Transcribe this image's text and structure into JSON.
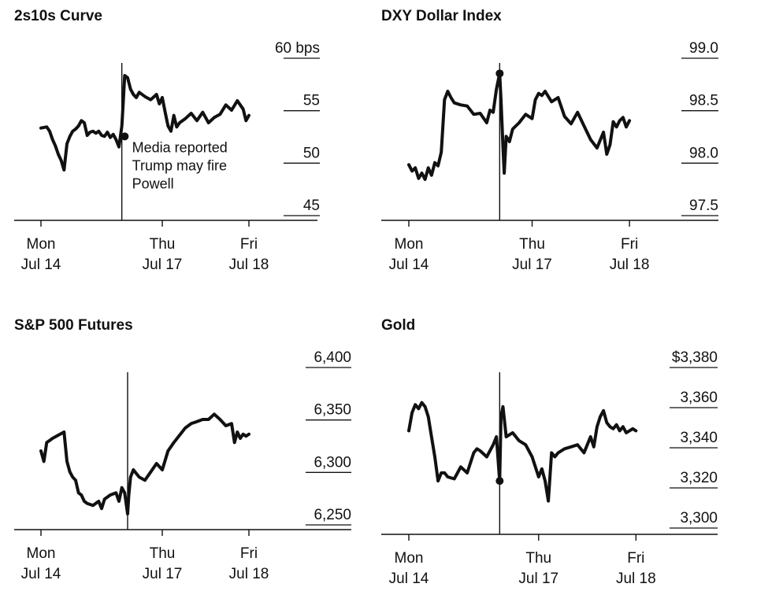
{
  "chart_data": [
    {
      "type": "line",
      "title": "2s10s Curve",
      "unit_label": "bps",
      "ylim": [
        45,
        60
      ],
      "y_ticks": [
        {
          "value": 60,
          "label": "60 bps"
        },
        {
          "value": 55,
          "label": "55"
        },
        {
          "value": 50,
          "label": "50"
        },
        {
          "value": 45,
          "label": "45"
        }
      ],
      "xlim": [
        0,
        4.2
      ],
      "x_ticks": [
        {
          "x": 0,
          "line1": "Mon",
          "line2": "Jul 14"
        },
        {
          "x": 2.1,
          "line1": "Thu",
          "line2": "Jul 17"
        },
        {
          "x": 3.6,
          "line1": "Fri",
          "line2": "Jul 18"
        }
      ],
      "event_x": 1.4,
      "event_marker": {
        "x": 1.45,
        "y": 51.5
      },
      "annotation": [
        "Media reported",
        "Trump may fire",
        "Powell"
      ],
      "series": [
        {
          "name": "2s10s",
          "x": [
            0,
            0.1,
            0.15,
            0.2,
            0.25,
            0.3,
            0.35,
            0.4,
            0.45,
            0.5,
            0.55,
            0.6,
            0.65,
            0.7,
            0.75,
            0.8,
            0.85,
            0.9,
            0.95,
            1.0,
            1.05,
            1.1,
            1.15,
            1.2,
            1.25,
            1.3,
            1.35,
            1.4,
            1.42,
            1.45,
            1.5,
            1.55,
            1.6,
            1.65,
            1.7,
            1.8,
            1.9,
            2.0,
            2.05,
            2.1,
            2.15,
            2.2,
            2.25,
            2.3,
            2.35,
            2.4,
            2.5,
            2.6,
            2.7,
            2.8,
            2.9,
            3.0,
            3.1,
            3.2,
            3.3,
            3.4,
            3.5,
            3.55,
            3.6
          ],
          "y": [
            52.3,
            52.4,
            52.0,
            51.2,
            50.6,
            49.8,
            49.2,
            48.3,
            50.8,
            51.5,
            52.0,
            52.2,
            52.5,
            53.0,
            52.8,
            51.6,
            51.9,
            52.0,
            51.8,
            52.0,
            51.6,
            51.5,
            51.9,
            51.4,
            51.7,
            51.2,
            50.5,
            52.5,
            54.3,
            57.3,
            57.1,
            56.0,
            55.5,
            55.2,
            55.7,
            55.3,
            55.0,
            55.5,
            54.6,
            55.2,
            53.8,
            52.5,
            52.0,
            53.5,
            52.4,
            52.8,
            53.2,
            53.7,
            53.0,
            53.8,
            52.8,
            53.3,
            53.6,
            54.5,
            54.0,
            54.9,
            54.1,
            53.0,
            53.5
          ]
        }
      ]
    },
    {
      "type": "line",
      "title": "DXY Dollar Index",
      "ylim": [
        97.5,
        99.0
      ],
      "y_ticks": [
        {
          "value": 99.0,
          "label": "99.0"
        },
        {
          "value": 98.5,
          "label": "98.5"
        },
        {
          "value": 98.0,
          "label": "98.0"
        },
        {
          "value": 97.5,
          "label": "97.5"
        }
      ],
      "xlim": [
        0,
        4.2
      ],
      "x_ticks": [
        {
          "x": 0,
          "line1": "Mon",
          "line2": "Jul 14"
        },
        {
          "x": 1.9,
          "line1": "Thu",
          "line2": "Jul 17"
        },
        {
          "x": 3.4,
          "line1": "Fri",
          "line2": "Jul 18"
        }
      ],
      "event_x": 1.4,
      "event_marker": {
        "x": 1.4,
        "y": 98.75
      },
      "series": [
        {
          "name": "DXY",
          "x": [
            0,
            0.05,
            0.1,
            0.15,
            0.2,
            0.25,
            0.3,
            0.35,
            0.4,
            0.45,
            0.5,
            0.55,
            0.6,
            0.65,
            0.7,
            0.8,
            0.9,
            1.0,
            1.1,
            1.2,
            1.25,
            1.3,
            1.35,
            1.4,
            1.42,
            1.45,
            1.47,
            1.5,
            1.55,
            1.6,
            1.7,
            1.8,
            1.9,
            1.95,
            2.0,
            2.05,
            2.1,
            2.2,
            2.3,
            2.4,
            2.5,
            2.6,
            2.7,
            2.8,
            2.9,
            3.0,
            3.05,
            3.1,
            3.15,
            3.2,
            3.25,
            3.3,
            3.35,
            3.4
          ],
          "y": [
            97.88,
            97.82,
            97.85,
            97.75,
            97.8,
            97.74,
            97.85,
            97.78,
            97.9,
            97.87,
            98.0,
            98.5,
            98.58,
            98.52,
            98.47,
            98.45,
            98.44,
            98.36,
            98.37,
            98.28,
            98.4,
            98.38,
            98.6,
            98.75,
            98.5,
            98.05,
            97.8,
            98.15,
            98.1,
            98.22,
            98.28,
            98.36,
            98.32,
            98.5,
            98.56,
            98.54,
            98.58,
            98.48,
            98.52,
            98.34,
            98.27,
            98.38,
            98.25,
            98.12,
            98.04,
            98.19,
            97.98,
            98.07,
            98.29,
            98.24,
            98.3,
            98.33,
            98.24,
            98.3
          ]
        }
      ]
    },
    {
      "type": "line",
      "title": "S&P 500 Futures",
      "ylim": [
        6250,
        6400
      ],
      "y_ticks": [
        {
          "value": 6400,
          "label": "6,400"
        },
        {
          "value": 6350,
          "label": "6,350"
        },
        {
          "value": 6300,
          "label": "6,300"
        },
        {
          "value": 6250,
          "label": "6,250"
        }
      ],
      "xlim": [
        0,
        4.2
      ],
      "x_ticks": [
        {
          "x": 0,
          "line1": "Mon",
          "line2": "Jul 14"
        },
        {
          "x": 2.1,
          "line1": "Thu",
          "line2": "Jul 17"
        },
        {
          "x": 3.6,
          "line1": "Fri",
          "line2": "Jul 18"
        }
      ],
      "event_x": 1.5,
      "series": [
        {
          "name": "S&P 500 Futures",
          "x": [
            0,
            0.05,
            0.1,
            0.15,
            0.2,
            0.3,
            0.4,
            0.45,
            0.5,
            0.55,
            0.6,
            0.65,
            0.7,
            0.75,
            0.8,
            0.9,
            1.0,
            1.05,
            1.1,
            1.2,
            1.3,
            1.35,
            1.4,
            1.45,
            1.5,
            1.52,
            1.55,
            1.6,
            1.7,
            1.8,
            1.9,
            2.0,
            2.1,
            2.2,
            2.3,
            2.4,
            2.5,
            2.6,
            2.7,
            2.8,
            2.9,
            3.0,
            3.1,
            3.2,
            3.3,
            3.35,
            3.4,
            3.45,
            3.5,
            3.55,
            3.6
          ],
          "y": [
            6310,
            6300,
            6318,
            6320,
            6322,
            6325,
            6328,
            6300,
            6290,
            6285,
            6282,
            6270,
            6268,
            6262,
            6260,
            6258,
            6262,
            6255,
            6264,
            6268,
            6270,
            6262,
            6275,
            6270,
            6250,
            6268,
            6285,
            6292,
            6285,
            6282,
            6290,
            6298,
            6292,
            6310,
            6318,
            6325,
            6332,
            6336,
            6338,
            6340,
            6340,
            6345,
            6340,
            6334,
            6336,
            6318,
            6328,
            6322,
            6326,
            6324,
            6326
          ]
        }
      ]
    },
    {
      "type": "line",
      "title": "Gold",
      "ylim": [
        3300,
        3380
      ],
      "y_ticks": [
        {
          "value": 3380,
          "label": "$3,380"
        },
        {
          "value": 3360,
          "label": "3,360"
        },
        {
          "value": 3340,
          "label": "3,340"
        },
        {
          "value": 3320,
          "label": "3,320"
        },
        {
          "value": 3300,
          "label": "3,300"
        }
      ],
      "xlim": [
        0,
        4.2
      ],
      "x_ticks": [
        {
          "x": 0,
          "line1": "Mon",
          "line2": "Jul 14"
        },
        {
          "x": 2.0,
          "line1": "Thu",
          "line2": "Jul 17"
        },
        {
          "x": 3.5,
          "line1": "Fri",
          "line2": "Jul 18"
        }
      ],
      "event_x": 1.4,
      "event_marker": {
        "x": 1.4,
        "y": 3318
      },
      "series": [
        {
          "name": "Gold",
          "x": [
            0,
            0.05,
            0.1,
            0.15,
            0.2,
            0.25,
            0.3,
            0.35,
            0.4,
            0.45,
            0.5,
            0.55,
            0.6,
            0.7,
            0.8,
            0.9,
            1.0,
            1.05,
            1.1,
            1.2,
            1.3,
            1.35,
            1.4,
            1.42,
            1.45,
            1.5,
            1.6,
            1.7,
            1.8,
            1.9,
            2.0,
            2.05,
            2.1,
            2.15,
            2.2,
            2.25,
            2.3,
            2.4,
            2.5,
            2.6,
            2.7,
            2.8,
            2.85,
            2.9,
            2.95,
            3.0,
            3.05,
            3.1,
            3.15,
            3.2,
            3.25,
            3.3,
            3.35,
            3.4,
            3.45,
            3.5
          ],
          "y": [
            3343,
            3352,
            3356,
            3354,
            3357,
            3355,
            3350,
            3340,
            3330,
            3318,
            3322,
            3322,
            3320,
            3319,
            3325,
            3322,
            3332,
            3334,
            3333,
            3330,
            3336,
            3340,
            3318,
            3350,
            3355,
            3340,
            3342,
            3338,
            3336,
            3330,
            3320,
            3324,
            3318,
            3308,
            3332,
            3330,
            3332,
            3334,
            3335,
            3336,
            3332,
            3340,
            3335,
            3345,
            3350,
            3353,
            3347,
            3345,
            3344,
            3346,
            3343,
            3345,
            3342,
            3343,
            3344,
            3343
          ]
        }
      ]
    }
  ]
}
